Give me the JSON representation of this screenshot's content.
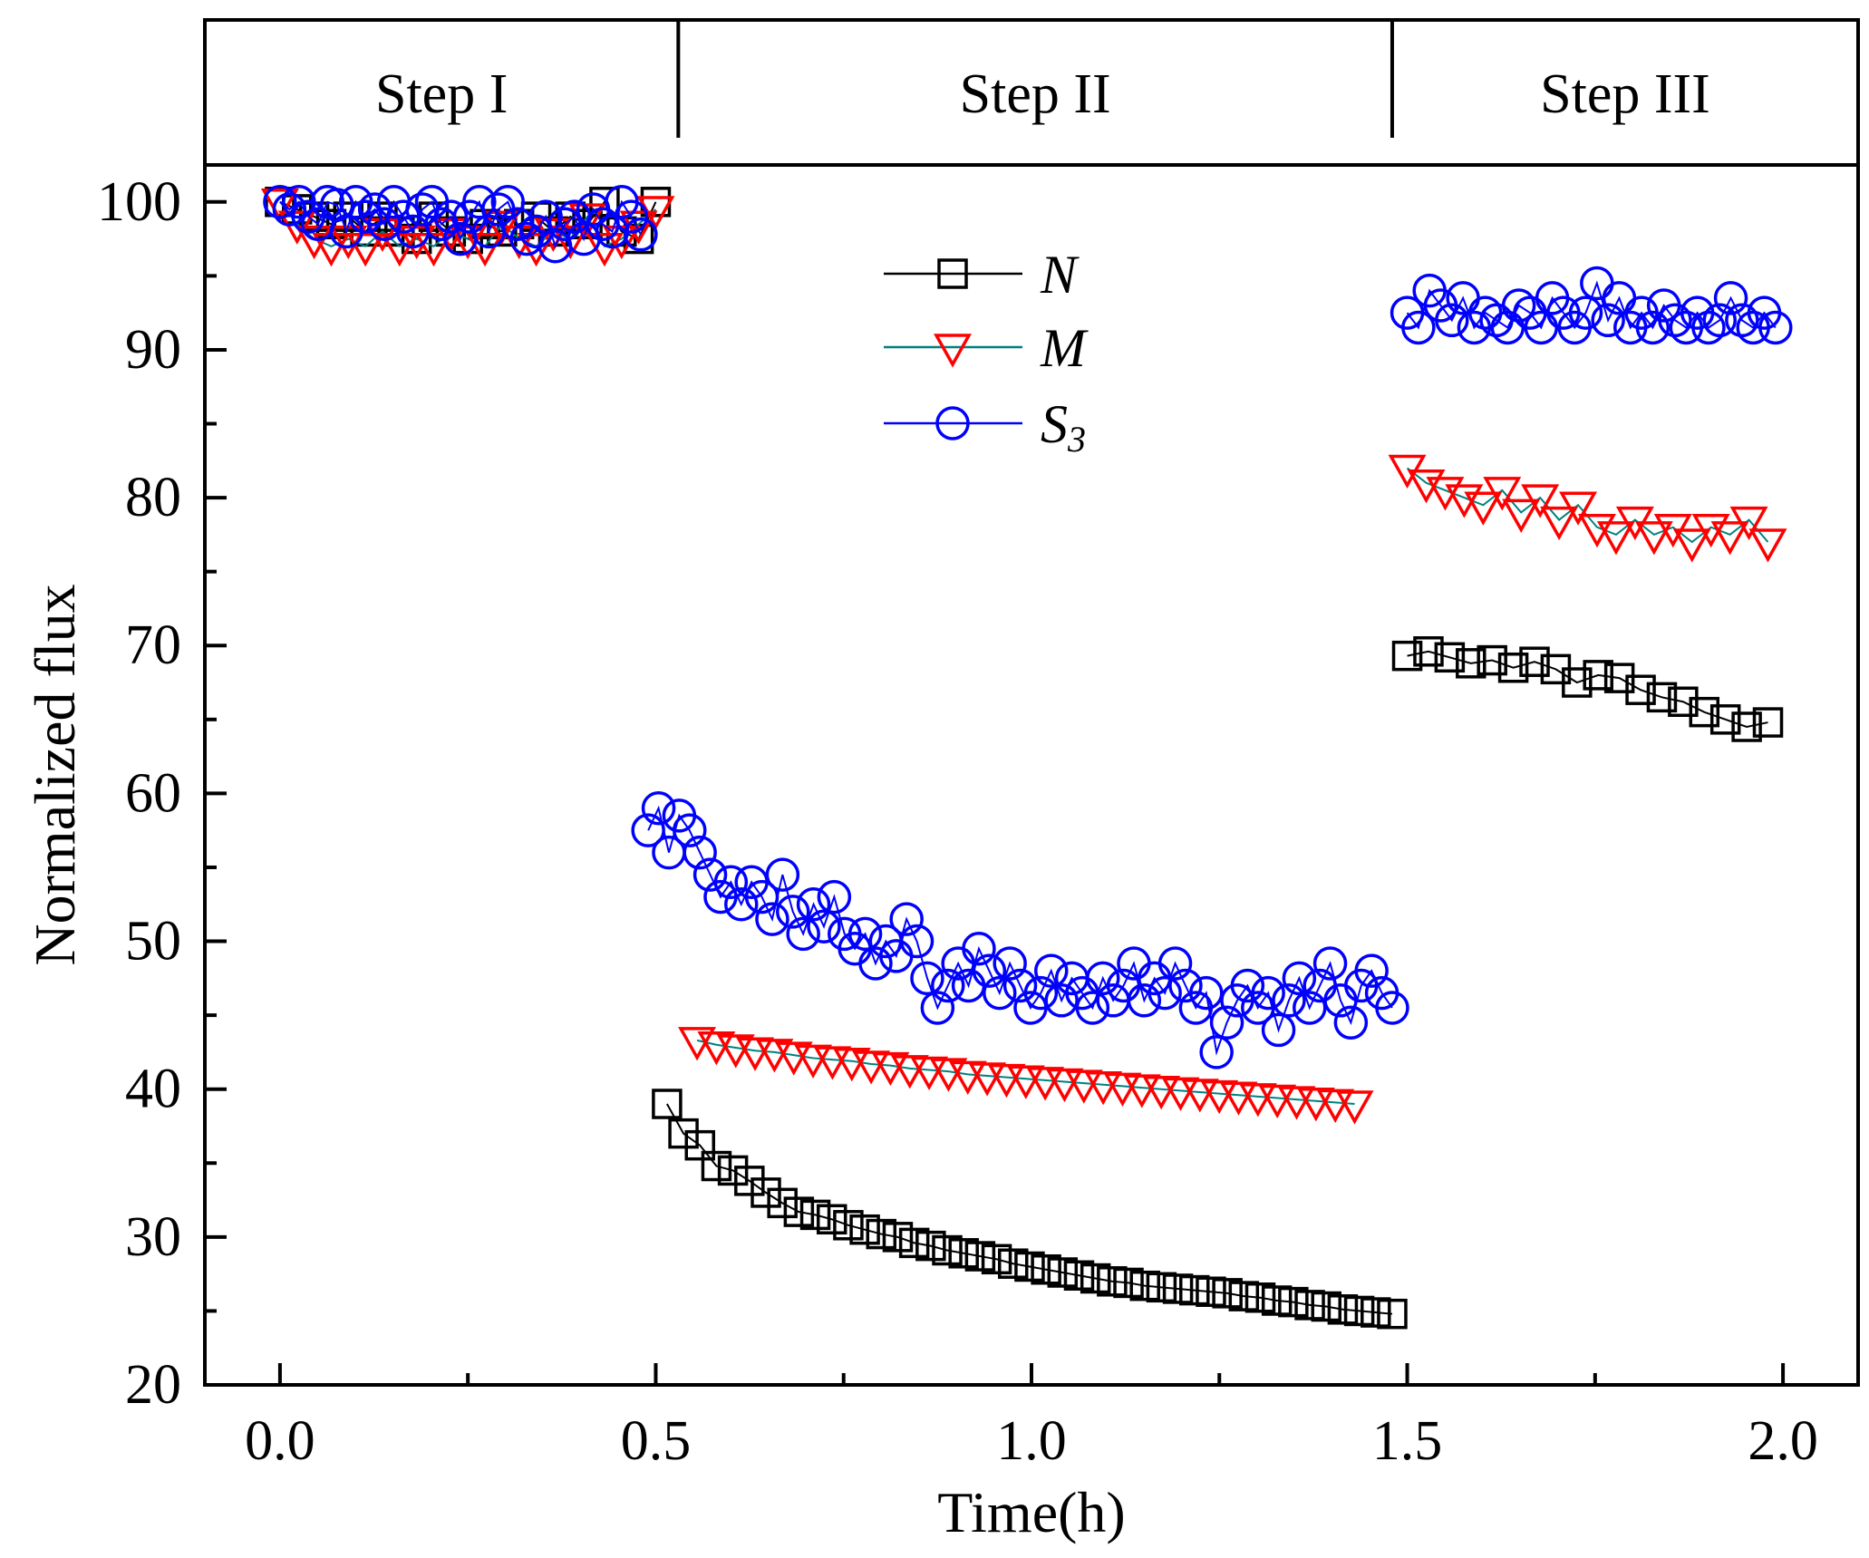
{
  "chart_data": {
    "type": "scatter",
    "title": "",
    "xlabel": "Time(h)",
    "ylabel": "Normalized flux",
    "xlim": [
      -0.1,
      2.1
    ],
    "ylim": [
      20,
      102.5
    ],
    "xticks": [
      "0.0",
      "0.5",
      "1.0",
      "1.5",
      "2.0"
    ],
    "yticks": [
      "20",
      "30",
      "40",
      "50",
      "60",
      "70",
      "80",
      "90",
      "100"
    ],
    "steps": [
      {
        "label": "Step I",
        "x_from": -0.1,
        "x_to": 0.53
      },
      {
        "label": "Step II",
        "x_from": 0.53,
        "x_to": 1.48
      },
      {
        "label": "Step III",
        "x_from": 1.48,
        "x_to": 2.1
      }
    ],
    "legend_position": "upper-center",
    "series": [
      {
        "name": "N",
        "subscript": "",
        "marker": "square",
        "color": "#000000",
        "line_color": "#000000",
        "segments": [
          {
            "x_start": 0.0,
            "x_end": 0.5,
            "y": [
              100,
              99.5,
              99,
              98.5,
              99,
              98,
              99,
              98,
              97.5,
              99,
              98,
              97.5,
              98.5,
              98,
              98.5,
              99,
              98,
              99,
              98.5,
              100,
              98,
              97.5,
              100
            ]
          },
          {
            "x_start": 0.515,
            "x_end": 1.48,
            "y": [
              39,
              37,
              36.2,
              34.8,
              34.5,
              33.8,
              33,
              32.3,
              31.7,
              31.5,
              31.2,
              30.8,
              30.5,
              30.2,
              30,
              29.6,
              29.4,
              29.1,
              28.9,
              28.7,
              28.5,
              28.2,
              28,
              27.8,
              27.6,
              27.4,
              27.2,
              27,
              26.9,
              26.7,
              26.6,
              26.5,
              26.4,
              26.3,
              26.2,
              26,
              25.9,
              25.7,
              25.6,
              25.4,
              25.3,
              25.1,
              25,
              24.9,
              24.8
            ]
          },
          {
            "x_start": 1.5,
            "x_end": 1.98,
            "y": [
              69.3,
              69.6,
              69.2,
              68.8,
              69,
              68.5,
              68.9,
              68.4,
              67.5,
              68,
              67.8,
              67,
              66.5,
              66.2,
              65.5,
              65,
              64.5,
              64.8
            ]
          }
        ]
      },
      {
        "name": "M",
        "subscript": "",
        "marker": "triangle-down",
        "color": "#ff0000",
        "line_color": "#008080",
        "segments": [
          {
            "x_start": 0.0,
            "x_end": 0.5,
            "y": [
              100,
              98.5,
              97.5,
              97,
              97.5,
              97,
              98,
              97,
              97.5,
              97,
              98,
              97.5,
              97,
              98.5,
              97.5,
              97,
              98,
              97.5,
              99,
              97,
              97.5,
              98.5,
              99.5
            ]
          },
          {
            "x_start": 0.555,
            "x_end": 1.43,
            "y": [
              43.3,
              43,
              42.8,
              42.6,
              42.5,
              42.3,
              42.1,
              42,
              41.9,
              41.7,
              41.6,
              41.4,
              41.3,
              41.2,
              41,
              40.9,
              40.8,
              40.7,
              40.6,
              40.5,
              40.4,
              40.3,
              40.2,
              40.1,
              40,
              39.9,
              39.8,
              39.7,
              39.6,
              39.5,
              39.4,
              39.3,
              39.2,
              39.1,
              39
            ]
          },
          {
            "x_start": 1.5,
            "x_end": 1.98,
            "y": [
              82,
              81,
              80.5,
              80,
              79.5,
              80.5,
              79,
              80,
              78.5,
              79.5,
              78,
              77.5,
              78.5,
              77.5,
              78,
              77,
              78,
              77.5,
              78.5,
              77
            ]
          }
        ]
      },
      {
        "name": "S",
        "subscript": "3",
        "marker": "circle",
        "color": "#0000ff",
        "line_color": "#0000ff",
        "segments": [
          {
            "x_start": 0.0,
            "x_end": 0.48,
            "y": [
              100,
              99.5,
              100,
              99,
              98.5,
              100,
              99.8,
              98,
              100,
              99,
              99.5,
              98.5,
              100,
              99,
              98,
              99.5,
              100,
              98.5,
              99,
              97.5,
              99,
              100,
              98,
              99.5,
              100,
              98.5,
              97.5,
              98,
              99,
              97,
              98.5,
              99,
              97.5,
              99.5,
              98.5,
              98,
              100,
              99,
              97.8
            ]
          },
          {
            "x_start": 0.49,
            "x_end": 1.48,
            "y": [
              57.5,
              59,
              56,
              58.5,
              57.5,
              56,
              54.5,
              53,
              54,
              52.5,
              54,
              53,
              51.5,
              54.5,
              52,
              50.5,
              52.5,
              51,
              53,
              50.5,
              49.5,
              50.5,
              48.5,
              50,
              49,
              51.5,
              50,
              47.5,
              45.5,
              47,
              48.5,
              47,
              49.5,
              48,
              46.5,
              48.5,
              47,
              45.5,
              46.5,
              48,
              46,
              47.5,
              46.5,
              45.5,
              47.5,
              46,
              47,
              48.5,
              46,
              47.5,
              46.5,
              48.5,
              47,
              45.5,
              46.5,
              42.5,
              44.5,
              46,
              47,
              45.5,
              46.5,
              44,
              46,
              47.5,
              45.5,
              47,
              48.5,
              46,
              44.5,
              47,
              48,
              46.5,
              45.5
            ]
          },
          {
            "x_start": 1.5,
            "x_end": 1.99,
            "y": [
              92.5,
              91.5,
              94,
              93,
              92,
              93.5,
              91.5,
              92.5,
              92,
              91.5,
              93,
              92.5,
              91.5,
              93.5,
              92.5,
              91.5,
              92.5,
              94.5,
              92,
              93.5,
              91.5,
              92.5,
              91.5,
              93,
              92,
              91.5,
              92.5,
              91.5,
              92,
              93.5,
              92,
              91.5,
              92.5,
              91.5
            ]
          }
        ]
      }
    ]
  }
}
